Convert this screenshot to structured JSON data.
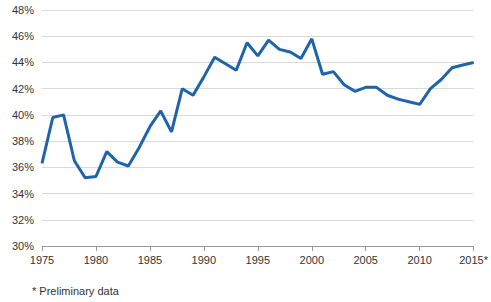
{
  "chart_data": {
    "type": "line",
    "x": [
      1975,
      1976,
      1977,
      1978,
      1979,
      1980,
      1981,
      1982,
      1983,
      1984,
      1985,
      1986,
      1987,
      1988,
      1989,
      1990,
      1991,
      1992,
      1993,
      1994,
      1995,
      1996,
      1997,
      1998,
      1999,
      2000,
      2001,
      2002,
      2003,
      2004,
      2005,
      2006,
      2007,
      2008,
      2009,
      2010,
      2011,
      2012,
      2013,
      2014,
      2015
    ],
    "values": [
      36.3,
      39.8,
      40.0,
      36.5,
      35.2,
      35.3,
      37.2,
      36.4,
      36.1,
      37.5,
      39.1,
      40.3,
      38.7,
      42.0,
      41.5,
      42.9,
      44.4,
      43.9,
      43.4,
      45.5,
      44.5,
      45.7,
      45.0,
      44.8,
      44.3,
      45.8,
      43.1,
      43.3,
      42.3,
      41.8,
      42.1,
      42.1,
      41.5,
      41.2,
      41.0,
      40.8,
      42.0,
      42.7,
      43.6,
      43.8,
      44.0
    ],
    "color": "#1f63aa",
    "xlim": [
      1975,
      2015
    ],
    "xticks": [
      1975,
      1980,
      1985,
      1990,
      1995,
      2000,
      2005,
      2010,
      {
        "value": 2015,
        "label": "2015*"
      }
    ],
    "ylim": [
      30,
      48
    ],
    "yticks": [
      {
        "value": 30,
        "label": "30%"
      },
      {
        "value": 32,
        "label": "32%"
      },
      {
        "value": 34,
        "label": "34%"
      },
      {
        "value": 36,
        "label": "36%"
      },
      {
        "value": 38,
        "label": "38%"
      },
      {
        "value": 40,
        "label": "40%"
      },
      {
        "value": 42,
        "label": "42%"
      },
      {
        "value": 44,
        "label": "44%"
      },
      {
        "value": 46,
        "label": "46%"
      },
      {
        "value": 48,
        "label": "48%"
      }
    ],
    "grid": true,
    "annotations": [
      "* Preliminary data"
    ]
  }
}
